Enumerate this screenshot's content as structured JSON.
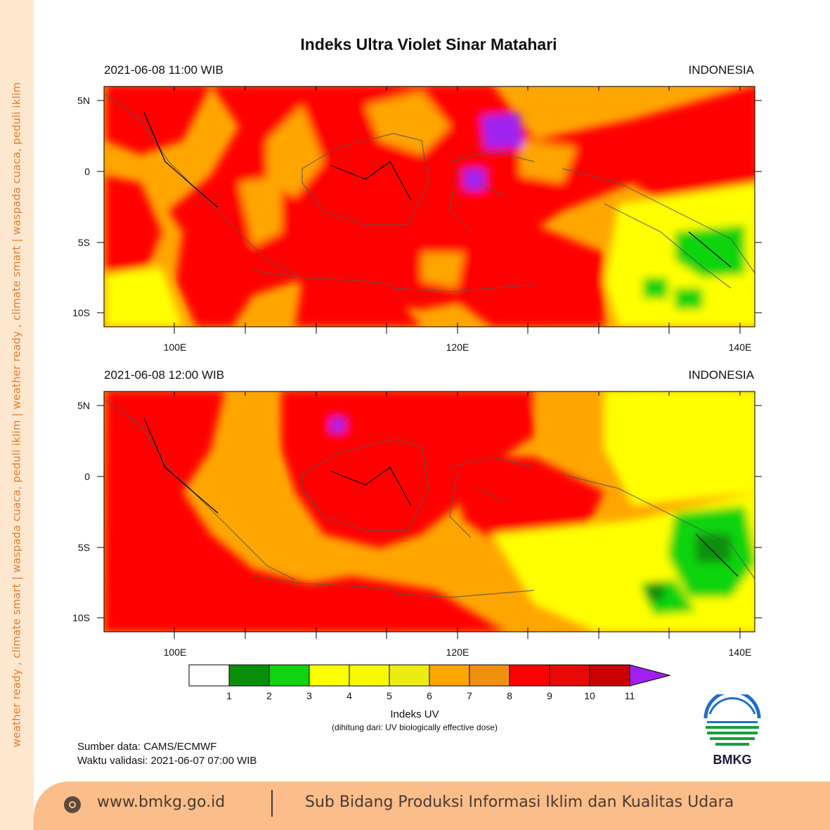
{
  "side_slogan": "weather ready , climate smart   |   waspada cuaca, peduli iklim   |   weather ready , climate smart   |   waspada cuaca, peduli iklim",
  "title": "Indeks Ultra Violet Sinar Matahari",
  "panels": [
    {
      "datetime": "2021-06-08  11:00 WIB",
      "region": "INDONESIA"
    },
    {
      "datetime": "2021-06-08  12:00 WIB",
      "region": "INDONESIA"
    }
  ],
  "axes": {
    "lat_ticks": [
      "5N",
      "0",
      "5S",
      "10S"
    ],
    "lon_ticks": [
      "100E",
      "120E",
      "140E"
    ]
  },
  "colorbar": {
    "labels": [
      "1",
      "2",
      "3",
      "4",
      "5",
      "6",
      "7",
      "8",
      "9",
      "10",
      "11"
    ],
    "colors": [
      "#ffffff",
      "#0a8f0a",
      "#0fd40f",
      "#ffff00",
      "#f8f800",
      "#ecec10",
      "#ffa500",
      "#f09010",
      "#ff0000",
      "#e80808",
      "#cc0000",
      "#a020f0"
    ],
    "title": "Indeks UV",
    "subtitle": "(dihitung dari: UV biologically effective dose)"
  },
  "source_lines": [
    "Sumber data: CAMS/ECMWF",
    "Waktu validasi: 2021-06-07 07:00 WIB"
  ],
  "logo_text": "BMKG",
  "footer": {
    "url": "www.bmkg.go.id",
    "unit": "Sub Bidang Produksi Informasi Iklim dan Kualitas Udara"
  }
}
